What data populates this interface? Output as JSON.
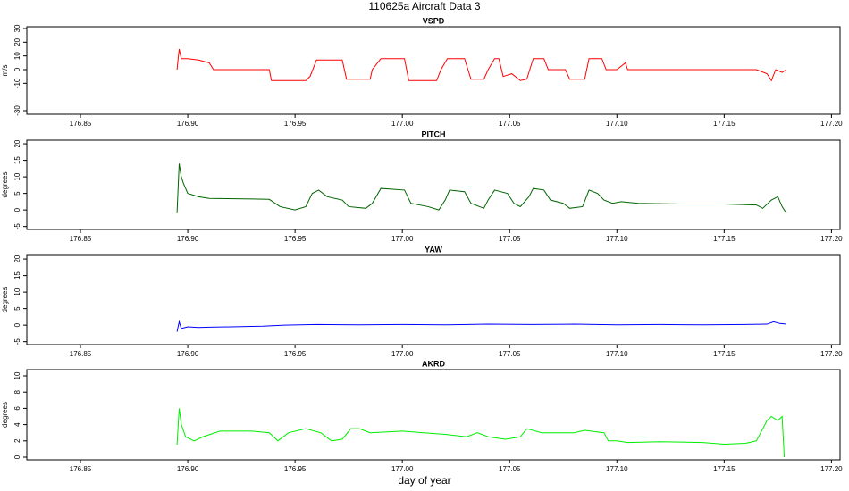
{
  "title": "110625a   Aircraft Data 3",
  "xlabel": "day of year",
  "chart_data": [
    {
      "type": "line",
      "title": "VSPD",
      "ylabel": "m/s",
      "color": "#ff0000",
      "x": [
        176.895,
        176.896,
        176.897,
        176.9,
        176.905,
        176.91,
        176.912,
        176.938,
        176.939,
        176.955,
        176.957,
        176.96,
        176.972,
        176.974,
        176.985,
        176.986,
        176.99,
        177.001,
        177.003,
        177.016,
        177.018,
        177.021,
        177.029,
        177.032,
        177.038,
        177.04,
        177.043,
        177.045,
        177.047,
        177.051,
        177.055,
        177.058,
        177.061,
        177.066,
        177.068,
        177.076,
        177.078,
        177.085,
        177.087,
        177.093,
        177.095,
        177.1,
        177.104,
        177.105,
        177.13,
        177.165,
        177.17,
        177.172,
        177.174,
        177.177,
        177.179
      ],
      "values": [
        0,
        15,
        8,
        8,
        7,
        5,
        0,
        0,
        -8,
        -8,
        -5,
        7,
        7,
        -7,
        -7,
        0,
        8,
        8,
        -8,
        -8,
        0,
        8,
        8,
        -7,
        -7,
        0,
        8,
        8,
        -5,
        -3,
        -8,
        -7,
        8,
        8,
        0,
        0,
        -7,
        -7,
        8,
        8,
        0,
        0,
        5,
        0,
        0,
        0,
        -3,
        -8,
        0,
        -2,
        0
      ],
      "xlim": [
        176.825,
        177.204
      ],
      "xticks": [
        176.85,
        {
          "value": 176.9,
          "label": "176.90"
        },
        176.95,
        {
          "value": 177,
          "label": "177.00"
        },
        177.05,
        {
          "value": 177.1,
          "label": "177.10"
        },
        177.15,
        {
          "value": 177.2,
          "label": "177.20"
        }
      ],
      "ylim": [
        -32.6,
        31.3
      ],
      "yticks": [
        -30,
        -10,
        0,
        10,
        20,
        30
      ]
    },
    {
      "type": "line",
      "title": "PITCH",
      "ylabel": "degrees",
      "color": "#006400",
      "x": [
        176.895,
        176.896,
        176.897,
        176.898,
        176.9,
        176.905,
        176.91,
        176.93,
        176.938,
        176.943,
        176.95,
        176.955,
        176.958,
        176.961,
        176.965,
        176.972,
        176.975,
        176.983,
        176.986,
        176.99,
        177.001,
        177.004,
        177.012,
        177.017,
        177.02,
        177.022,
        177.029,
        177.032,
        177.038,
        177.04,
        177.043,
        177.049,
        177.052,
        177.055,
        177.059,
        177.061,
        177.066,
        177.069,
        177.075,
        177.078,
        177.084,
        177.087,
        177.091,
        177.094,
        177.098,
        177.102,
        177.11,
        177.13,
        177.15,
        177.165,
        177.168,
        177.172,
        177.175,
        177.177,
        177.179
      ],
      "values": [
        -1,
        14,
        10,
        8,
        5,
        4,
        3.5,
        3.3,
        3.2,
        1,
        0,
        1,
        5,
        6,
        4,
        3,
        1,
        0.5,
        2,
        6.5,
        6,
        2,
        1,
        0,
        3,
        6,
        5.5,
        2,
        0.5,
        3,
        6,
        5,
        2,
        1,
        4,
        6.5,
        6,
        3,
        2,
        0.5,
        1,
        6,
        5,
        3,
        2,
        2.5,
        2,
        1.8,
        1.8,
        1.5,
        0.5,
        3,
        4,
        1,
        -1
      ],
      "xlim": [
        176.825,
        177.204
      ],
      "xticks": [
        176.85,
        {
          "value": 176.9,
          "label": "176.90"
        },
        176.95,
        {
          "value": 177,
          "label": "177.00"
        },
        177.05,
        {
          "value": 177.1,
          "label": "177.10"
        },
        177.15,
        {
          "value": 177.2,
          "label": "177.20"
        }
      ],
      "ylim": [
        -5.9,
        21.1
      ],
      "yticks": [
        -5,
        0,
        5,
        10,
        15,
        20
      ]
    },
    {
      "type": "line",
      "title": "YAW",
      "ylabel": "degrees",
      "color": "#0000ff",
      "x": [
        176.895,
        176.896,
        176.897,
        176.9,
        176.905,
        176.91,
        176.92,
        176.935,
        176.945,
        176.96,
        176.98,
        177.0,
        177.02,
        177.04,
        177.06,
        177.08,
        177.1,
        177.12,
        177.14,
        177.16,
        177.17,
        177.173,
        177.176,
        177.179
      ],
      "values": [
        -2,
        1,
        -1,
        -0.5,
        -0.7,
        -0.6,
        -0.5,
        -0.3,
        0,
        0.2,
        0.1,
        0.2,
        0.1,
        0.3,
        0.2,
        0.3,
        0.1,
        0.2,
        0.1,
        0.2,
        0.3,
        1,
        0.5,
        0.3
      ],
      "xlim": [
        176.825,
        177.204
      ],
      "xticks": [
        176.85,
        {
          "value": 176.9,
          "label": "176.90"
        },
        176.95,
        {
          "value": 177,
          "label": "177.00"
        },
        177.05,
        {
          "value": 177.1,
          "label": "177.10"
        },
        177.15,
        {
          "value": 177.2,
          "label": "177.20"
        }
      ],
      "ylim": [
        -5.9,
        21.1
      ],
      "yticks": [
        -5,
        0,
        5,
        10,
        15,
        20
      ]
    },
    {
      "type": "line",
      "title": "AKRD",
      "ylabel": "degrees",
      "color": "#00ee00",
      "x": [
        176.895,
        176.896,
        176.897,
        176.899,
        176.903,
        176.907,
        176.915,
        176.93,
        176.938,
        176.942,
        176.947,
        176.955,
        176.962,
        176.967,
        176.972,
        176.976,
        176.98,
        176.985,
        177.0,
        177.01,
        177.02,
        177.03,
        177.035,
        177.04,
        177.048,
        177.055,
        177.058,
        177.065,
        177.08,
        177.085,
        177.094,
        177.096,
        177.1,
        177.105,
        177.12,
        177.14,
        177.15,
        177.16,
        177.165,
        177.17,
        177.172,
        177.175,
        177.177,
        177.178
      ],
      "values": [
        1.5,
        6,
        4,
        2.5,
        2,
        2.5,
        3.2,
        3.2,
        3,
        2,
        3,
        3.5,
        3,
        2,
        2.2,
        3.5,
        3.5,
        3,
        3.2,
        3,
        2.8,
        2.5,
        3,
        2.5,
        2.2,
        2.5,
        3.5,
        3,
        3,
        3.3,
        3,
        2,
        2,
        1.8,
        1.9,
        1.8,
        1.6,
        1.7,
        2,
        4.5,
        5,
        4.5,
        5,
        0
      ],
      "xlim": [
        176.825,
        177.204
      ],
      "xticks": [
        176.85,
        {
          "value": 176.9,
          "label": "176.90"
        },
        176.95,
        {
          "value": 177,
          "label": "177.00"
        },
        177.05,
        {
          "value": 177.1,
          "label": "177.10"
        },
        177.15,
        {
          "value": 177.2,
          "label": "177.20"
        }
      ],
      "ylim": [
        -0.33,
        10.77
      ],
      "yticks": [
        0,
        2,
        4,
        6,
        8,
        10
      ]
    }
  ]
}
